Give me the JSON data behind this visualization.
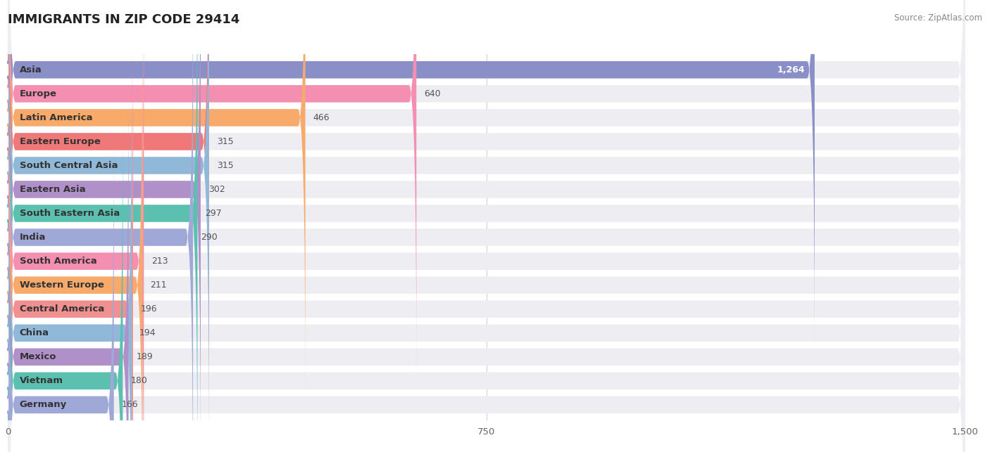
{
  "title": "IMMIGRANTS IN ZIP CODE 29414",
  "source": "Source: ZipAtlas.com",
  "categories": [
    "Asia",
    "Europe",
    "Latin America",
    "Eastern Europe",
    "South Central Asia",
    "Eastern Asia",
    "South Eastern Asia",
    "India",
    "South America",
    "Western Europe",
    "Central America",
    "China",
    "Mexico",
    "Vietnam",
    "Germany"
  ],
  "values": [
    1264,
    640,
    466,
    315,
    315,
    302,
    297,
    290,
    213,
    211,
    196,
    194,
    189,
    180,
    166
  ],
  "bar_colors": [
    "#8b8fc8",
    "#f48fb1",
    "#f7aa6a",
    "#f07878",
    "#90b8d8",
    "#b090c8",
    "#5cc0b0",
    "#a0a8d8",
    "#f48fb1",
    "#f7aa6a",
    "#f09090",
    "#90b8d8",
    "#b090c8",
    "#5cc0b0",
    "#a0a8d8"
  ],
  "xlim": [
    0,
    1500
  ],
  "xticks": [
    0,
    750,
    1500
  ],
  "title_fontsize": 13,
  "label_fontsize": 9.5,
  "value_fontsize": 9,
  "background_color": "#ffffff",
  "bar_bg_color": "#ededf2"
}
